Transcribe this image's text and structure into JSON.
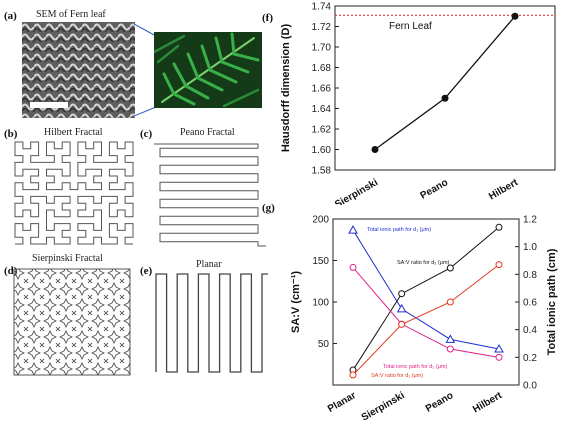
{
  "panels": {
    "a": {
      "label": "(a)",
      "title": "SEM of Fern leaf"
    },
    "b": {
      "label": "(b)",
      "title": "Hilbert Fractal"
    },
    "c": {
      "label": "(c)",
      "title": "Peano Fractal"
    },
    "d": {
      "label": "(d)",
      "title": "Sierpinski Fractal"
    },
    "e": {
      "label": "(e)",
      "title": "Planar"
    },
    "f": {
      "label": "(f)"
    },
    "g": {
      "label": "(g)"
    }
  },
  "colors": {
    "fern": "#2f9a3c",
    "sem": "#6a6a6a",
    "blue": "#1f2fd0",
    "black": "#111111",
    "magenta": "#e0208a",
    "red": "#e03a1a",
    "refline": "#e02020"
  },
  "chart_data": [
    {
      "id": "f",
      "type": "line",
      "categories": [
        "Sierpinski",
        "Peano",
        "Hilbert"
      ],
      "values": [
        1.6,
        1.65,
        1.73
      ],
      "ylabel": "Hausdorff dimension (D)",
      "xlabel": "",
      "ylim": [
        1.58,
        1.74
      ],
      "yticks": [
        "1.58",
        "1.60",
        "1.62",
        "1.64",
        "1.66",
        "1.68",
        "1.70",
        "1.72",
        "1.74"
      ],
      "reference": {
        "label": "Fern Leaf",
        "value": 1.731
      },
      "grid": false
    },
    {
      "id": "g",
      "type": "line",
      "categories": [
        "Planar",
        "Sierpinski",
        "Peano",
        "Hilbert"
      ],
      "ylabel_left": "SA:V (cm⁻¹)",
      "ylabel_right": "Total ionic path (cm)",
      "ylim_left": [
        0,
        200
      ],
      "ylim_right": [
        0.0,
        1.2
      ],
      "yticks_left": [
        "50",
        "100",
        "150",
        "200"
      ],
      "yticks_right": [
        "0.0",
        "0.2",
        "0.4",
        "0.6",
        "0.8",
        "1.0",
        "1.2"
      ],
      "series": [
        {
          "name": "Total ionic path for d₁ (μm)",
          "axis": "right",
          "color": "#1f2fd0",
          "marker": "triangle",
          "values": [
            1.12,
            0.55,
            0.33,
            0.26
          ]
        },
        {
          "name": "SA:V ratio for d₂ (μm)",
          "axis": "left",
          "color": "#111111",
          "marker": "circle",
          "values": [
            18,
            110,
            141,
            190
          ]
        },
        {
          "name": "Total ionic path for d₂ (μm)",
          "axis": "right",
          "color": "#e0208a",
          "marker": "circle",
          "values": [
            0.85,
            0.44,
            0.26,
            0.2
          ]
        },
        {
          "name": "SA:V ratio for d₁ (μm)",
          "axis": "left",
          "color": "#e03a1a",
          "marker": "circle",
          "values": [
            12,
            73,
            100,
            145
          ]
        }
      ],
      "grid": false
    }
  ]
}
